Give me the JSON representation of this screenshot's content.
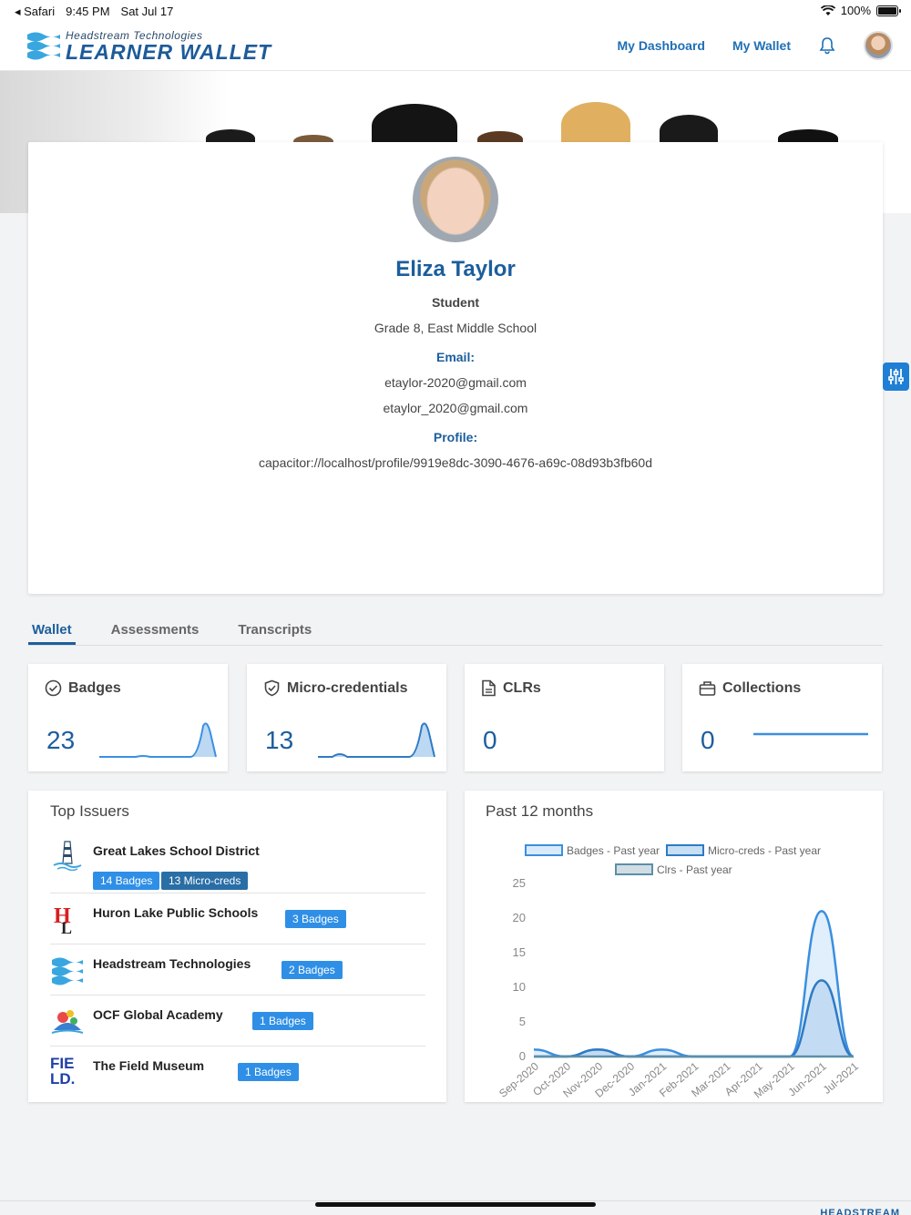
{
  "status_bar": {
    "app": "Safari",
    "time": "9:45 PM",
    "date": "Sat Jul 17",
    "battery": "100%"
  },
  "header": {
    "logo_small": "Headstream Technologies",
    "logo_big": "LEARNER WALLET",
    "nav": {
      "dashboard": "My Dashboard",
      "wallet": "My Wallet"
    }
  },
  "profile": {
    "name": "Eliza Taylor",
    "role": "Student",
    "school": "Grade 8, East Middle School",
    "email_label": "Email:",
    "emails": [
      "etaylor-2020@gmail.com",
      "etaylor_2020@gmail.com"
    ],
    "profile_label": "Profile:",
    "profile_url": "capacitor://localhost/profile/9919e8dc-3090-4676-a69c-08d93b3fb60d"
  },
  "tabs": [
    "Wallet",
    "Assessments",
    "Transcripts"
  ],
  "stats": [
    {
      "title": "Badges",
      "value": "23",
      "icon": "badge-check-icon"
    },
    {
      "title": "Micro-credentials",
      "value": "13",
      "icon": "shield-check-icon"
    },
    {
      "title": "CLRs",
      "value": "0",
      "icon": "document-icon"
    },
    {
      "title": "Collections",
      "value": "0",
      "icon": "briefcase-icon"
    }
  ],
  "top_issuers": {
    "title": "Top Issuers",
    "rows": [
      {
        "name": "Great Lakes School District",
        "badges": "14 Badges",
        "micro": "13 Micro-creds"
      },
      {
        "name": "Huron Lake Public Schools",
        "badges": "3 Badges"
      },
      {
        "name": "Headstream Technologies",
        "badges": "2 Badges"
      },
      {
        "name": "OCF Global Academy",
        "badges": "1 Badges"
      },
      {
        "name": "The Field Museum",
        "badges": "1 Badges"
      }
    ]
  },
  "chart": {
    "title": "Past 12 months",
    "legend": [
      "Badges - Past year",
      "Micro-creds - Past year",
      "Clrs - Past year"
    ]
  },
  "chart_data": {
    "type": "area",
    "x": [
      "Sep-2020",
      "Oct-2020",
      "Nov-2020",
      "Dec-2020",
      "Jan-2021",
      "Feb-2021",
      "Mar-2021",
      "Apr-2021",
      "May-2021",
      "Jun-2021",
      "Jul-2021"
    ],
    "ylim": [
      0,
      25
    ],
    "yticks": [
      0,
      5,
      10,
      15,
      20,
      25
    ],
    "series": [
      {
        "name": "Badges - Past year",
        "values": [
          1,
          0,
          1,
          0,
          1,
          0,
          0,
          0,
          0,
          21,
          0
        ],
        "color": "#3b8fe0"
      },
      {
        "name": "Micro-creds - Past year",
        "values": [
          0,
          0,
          1,
          0,
          0,
          0,
          0,
          0,
          0,
          11,
          0
        ],
        "color": "#2f7ac4"
      },
      {
        "name": "Clrs - Past year",
        "values": [
          0,
          0,
          0,
          0,
          0,
          0,
          0,
          0,
          0,
          0,
          0
        ],
        "color": "#5c8fa8"
      }
    ]
  },
  "footer": {
    "logo": "HEADSTREAM"
  },
  "colors": {
    "brand": "#1c5e9c",
    "accent": "#2f8fe6",
    "tag_dark": "#2a6ea6"
  }
}
